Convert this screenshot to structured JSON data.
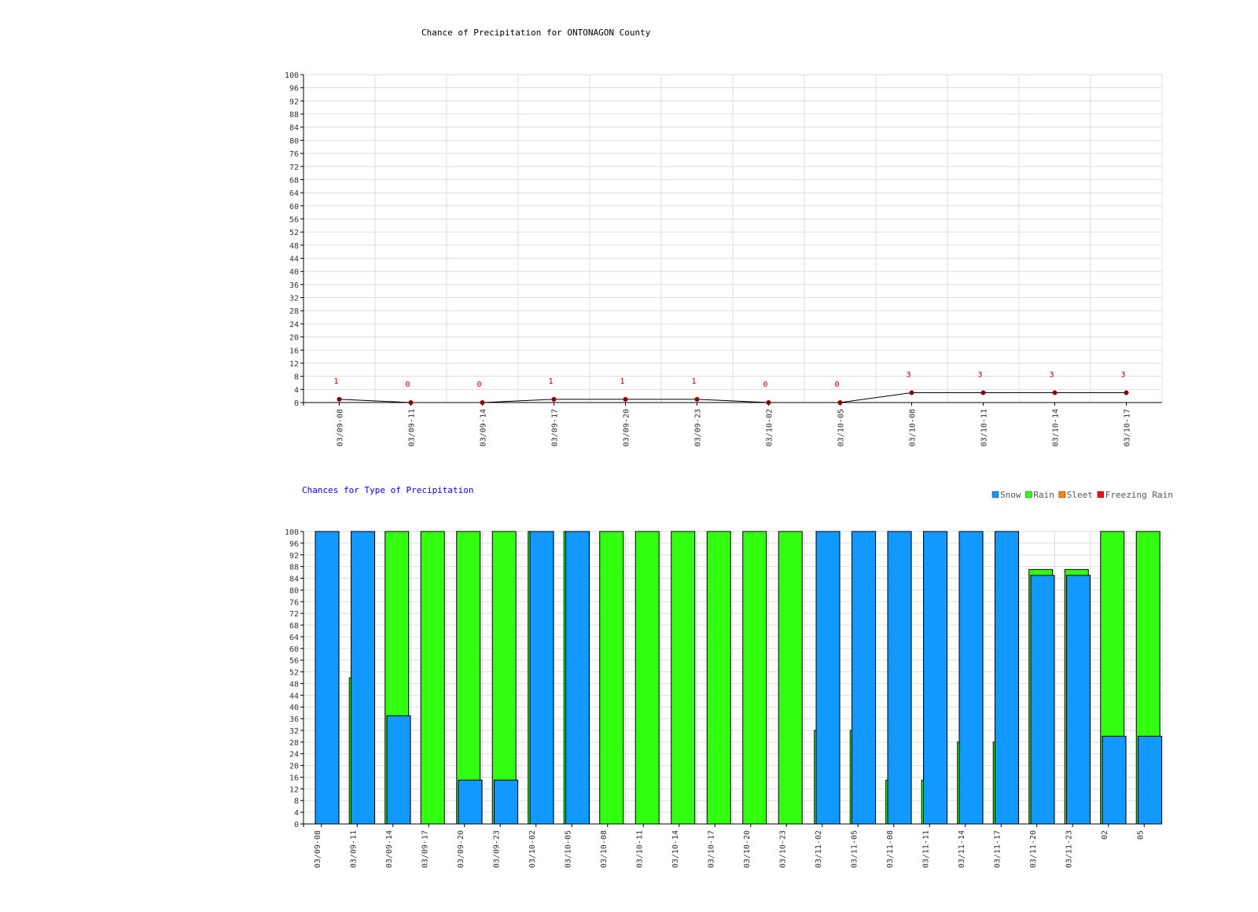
{
  "colors": {
    "snow": "#1199ff",
    "rain": "#33ff11",
    "sleet": "#ff8800",
    "freezing_rain": "#ee1111",
    "line_point": "#880000",
    "label_text": "#aa0000",
    "legend_text": "#555555",
    "subtitle_text": "#0000ee",
    "grid": "#dddddd",
    "axis": "#000000",
    "tick_text": "#333333"
  },
  "chart_data": [
    {
      "type": "line",
      "title": "Chance of Precipitation for ONTONAGON County",
      "x": [
        "03/09-08",
        "03/09-11",
        "03/09-14",
        "03/09-17",
        "03/09-20",
        "03/09-23",
        "03/10-02",
        "03/10-05",
        "03/10-08",
        "03/10-11",
        "03/10-14",
        "03/10-17"
      ],
      "values": [
        1,
        0,
        0,
        1,
        1,
        1,
        0,
        0,
        3,
        3,
        3,
        3
      ],
      "data_labels": [
        "1",
        "0",
        "0",
        "1",
        "1",
        "1",
        "0",
        "0",
        "3",
        "3",
        "3",
        "3"
      ],
      "ylim": [
        0,
        100
      ],
      "yticks": [
        "0",
        "4",
        "8",
        "12",
        "16",
        "20",
        "24",
        "28",
        "32",
        "36",
        "40",
        "44",
        "48",
        "52",
        "56",
        "60",
        "64",
        "68",
        "72",
        "76",
        "80",
        "84",
        "88",
        "92",
        "96",
        "100"
      ],
      "grid": true
    },
    {
      "type": "bar",
      "title": "Chances for Type of Precipitation",
      "legend": {
        "position": "top-right",
        "items": [
          "Snow",
          "Rain",
          "Sleet",
          "Freezing Rain"
        ]
      },
      "categories": [
        "03/09-08",
        "03/09-11",
        "03/09-14",
        "03/09-17",
        "03/09-20",
        "03/09-23",
        "03/10-02",
        "03/10-05",
        "03/10-08",
        "03/10-11",
        "03/10-14",
        "03/10-17",
        "03/10-20",
        "03/10-23",
        "03/11-02",
        "03/11-05",
        "03/11-08",
        "03/11-11",
        "03/11-14",
        "03/11-17",
        "03/11-20",
        "03/11-23",
        "02",
        "05"
      ],
      "series": [
        {
          "name": "Rain",
          "values": [
            0,
            50,
            100,
            100,
            100,
            100,
            100,
            100,
            100,
            100,
            100,
            100,
            100,
            100,
            32,
            32,
            15,
            15,
            28,
            28,
            87,
            87,
            100,
            100
          ]
        },
        {
          "name": "Snow",
          "values": [
            100,
            100,
            37,
            0,
            15,
            15,
            100,
            100,
            0,
            0,
            0,
            0,
            0,
            0,
            100,
            100,
            100,
            100,
            100,
            100,
            85,
            85,
            30,
            30
          ]
        },
        {
          "name": "Sleet",
          "values": [
            0,
            0,
            0,
            0,
            0,
            0,
            0,
            0,
            0,
            0,
            0,
            0,
            0,
            0,
            0,
            0,
            0,
            0,
            0,
            0,
            0,
            0,
            0,
            0
          ]
        },
        {
          "name": "Freezing Rain",
          "values": [
            0,
            0,
            0,
            0,
            0,
            0,
            0,
            0,
            0,
            0,
            0,
            0,
            0,
            0,
            0,
            0,
            0,
            0,
            0,
            0,
            0,
            0,
            0,
            0
          ]
        }
      ],
      "ylim": [
        0,
        100
      ],
      "yticks": [
        "0",
        "4",
        "8",
        "12",
        "16",
        "20",
        "24",
        "28",
        "32",
        "36",
        "40",
        "44",
        "48",
        "52",
        "56",
        "60",
        "64",
        "68",
        "72",
        "76",
        "80",
        "84",
        "88",
        "92",
        "96",
        "100"
      ],
      "grid": true
    }
  ]
}
